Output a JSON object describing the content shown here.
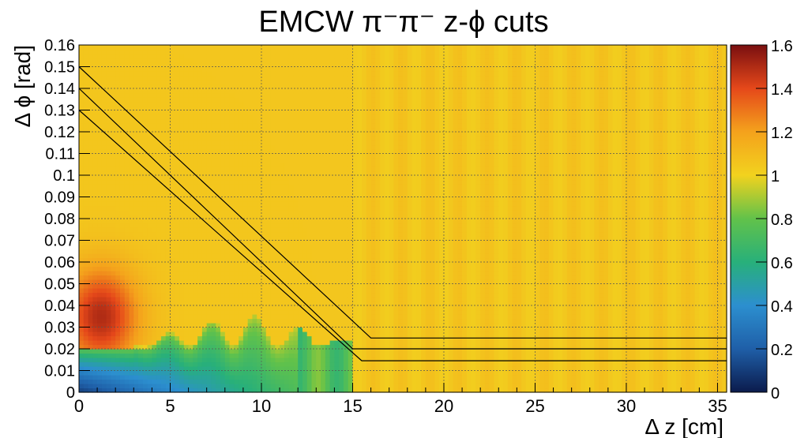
{
  "chart_data": {
    "type": "heatmap",
    "title": "EMCW π⁻π⁻  z-ϕ cuts",
    "xlabel": "Δ z [cm]",
    "ylabel": "Δ ϕ [rad]",
    "xlim": [
      0,
      35.5
    ],
    "ylim": [
      0,
      0.16
    ],
    "zlim": [
      0,
      1.6
    ],
    "grid": true,
    "x_ticks": [
      "0",
      "5",
      "10",
      "15",
      "20",
      "25",
      "30",
      "35"
    ],
    "x_tick_values": [
      0,
      5,
      10,
      15,
      20,
      25,
      30,
      35
    ],
    "y_ticks": [
      "0",
      "0.01",
      "0.02",
      "0.03",
      "0.04",
      "0.05",
      "0.06",
      "0.07",
      "0.08",
      "0.09",
      "0.1",
      "0.11",
      "0.12",
      "0.13",
      "0.14",
      "0.15",
      "0.16"
    ],
    "y_tick_values": [
      0,
      0.01,
      0.02,
      0.03,
      0.04,
      0.05,
      0.06,
      0.07,
      0.08,
      0.09,
      0.1,
      0.11,
      0.12,
      0.13,
      0.14,
      0.15,
      0.16
    ],
    "colorbar_ticks": [
      "0",
      "0.2",
      "0.4",
      "0.6",
      "0.8",
      "1",
      "1.2",
      "1.4",
      "1.6"
    ],
    "colorbar_tick_values": [
      0,
      0.2,
      0.4,
      0.6,
      0.8,
      1.0,
      1.2,
      1.4,
      1.6
    ],
    "colorbar_colors": [
      "#0b1b4c",
      "#1f5fa8",
      "#2c8fcf",
      "#28b07a",
      "#62c24a",
      "#f2d21e",
      "#f4a21c",
      "#e5481a",
      "#7a0f10"
    ],
    "background_value": 1.05,
    "cut_lines": [
      {
        "points": [
          [
            0,
            0.15
          ],
          [
            16,
            0.025
          ],
          [
            35.5,
            0.025
          ]
        ]
      },
      {
        "points": [
          [
            0,
            0.14
          ],
          [
            15,
            0.02
          ],
          [
            35.5,
            0.02
          ]
        ]
      },
      {
        "points": [
          [
            0,
            0.13
          ],
          [
            15.5,
            0.0145
          ],
          [
            35.5,
            0.0145
          ]
        ]
      }
    ],
    "line_color": "#000000"
  }
}
